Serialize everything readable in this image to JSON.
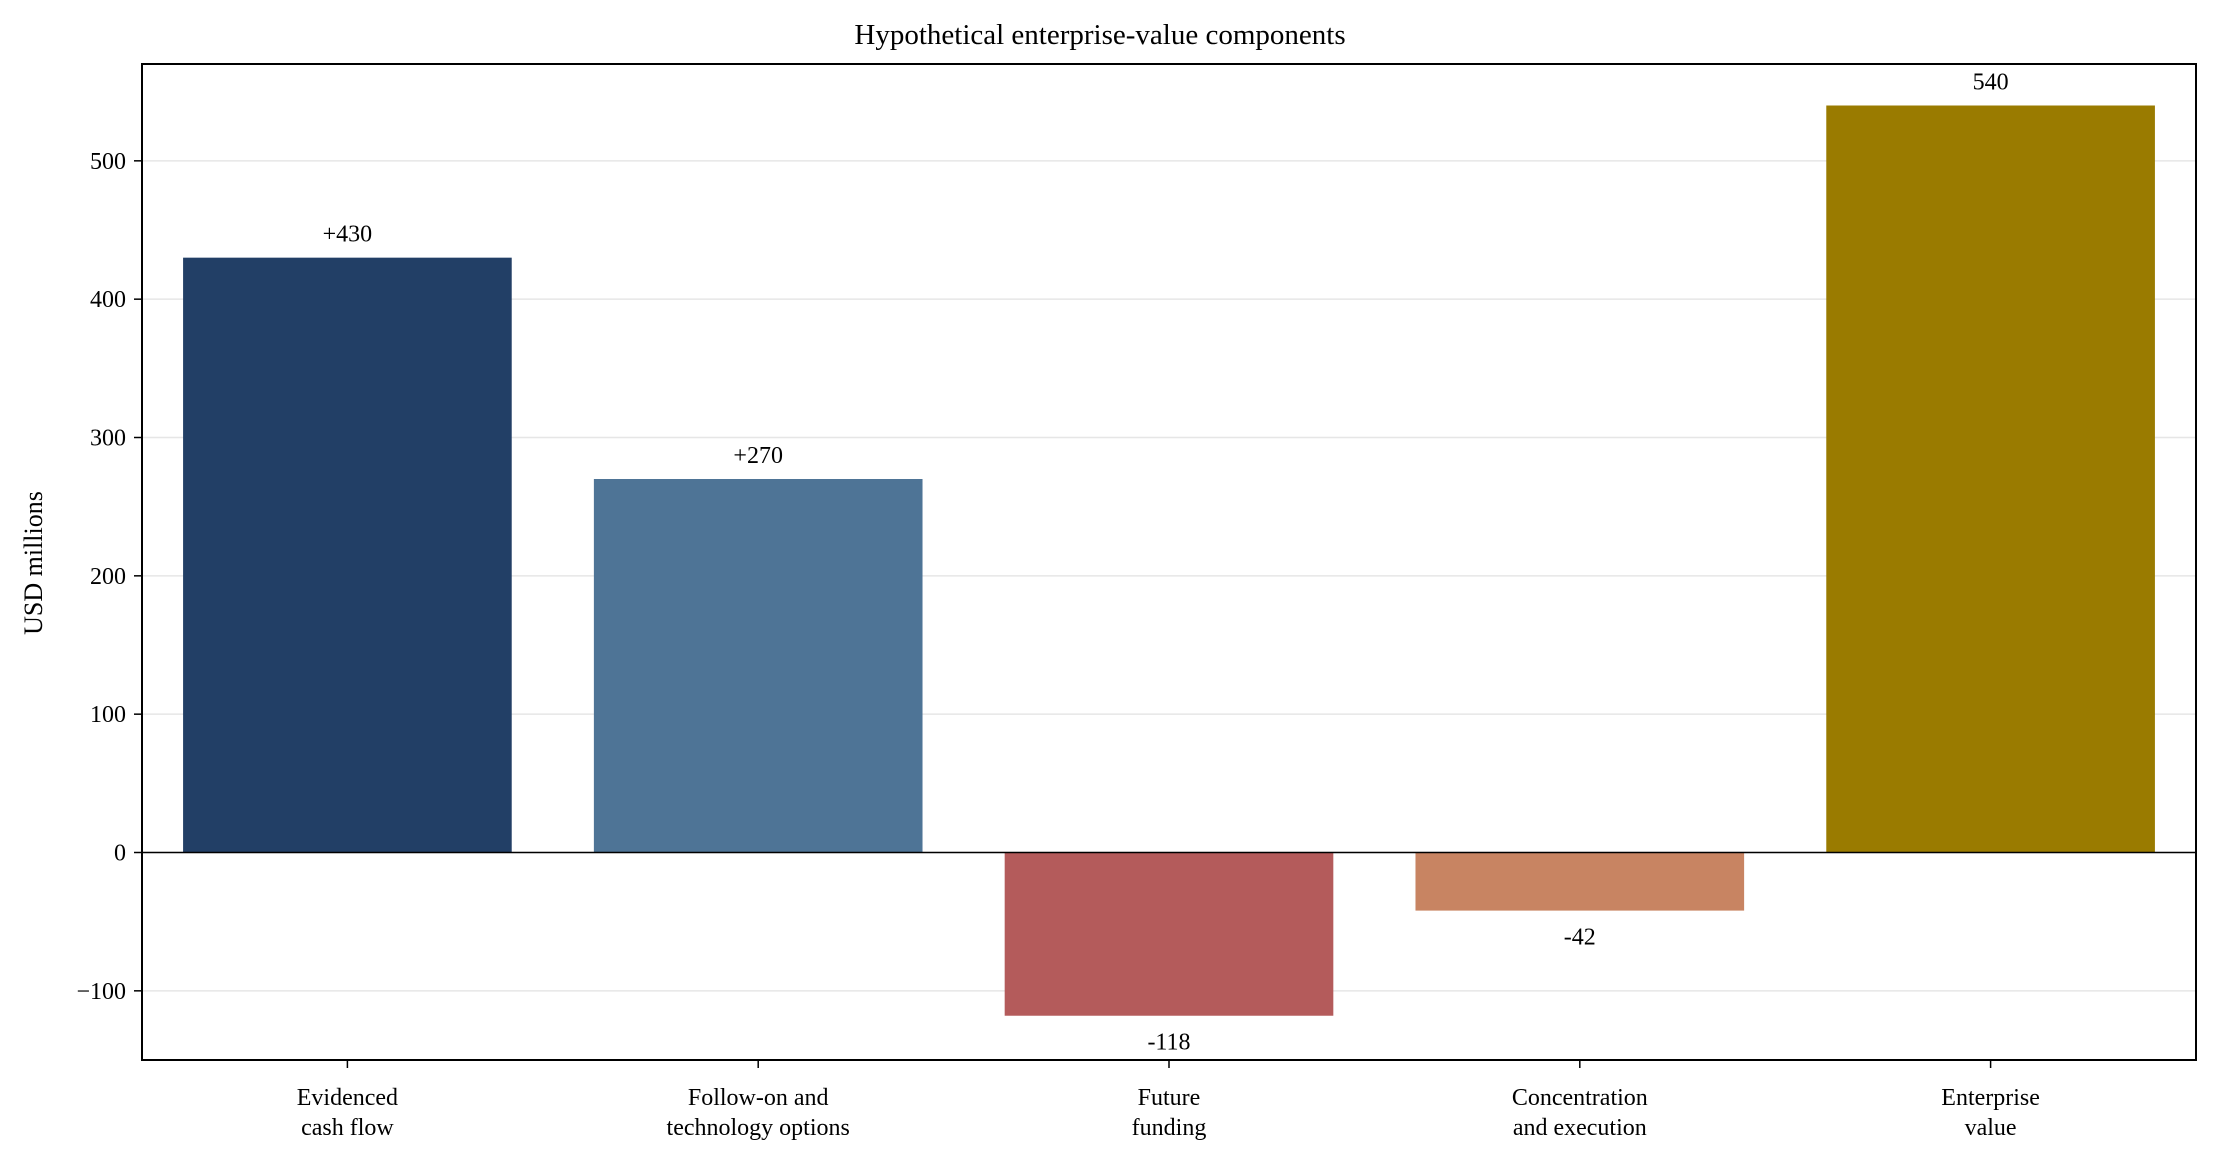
{
  "chart_data": {
    "type": "bar",
    "title": "Hypothetical enterprise-value components",
    "ylabel": "USD millions",
    "xlabel": "",
    "ylim": [
      -150,
      570
    ],
    "yticks": [
      -100,
      0,
      100,
      200,
      300,
      400,
      500
    ],
    "ytick_labels": [
      "−100",
      "0",
      "100",
      "200",
      "300",
      "400",
      "500"
    ],
    "grid": true,
    "categories": [
      [
        "Evidenced",
        "cash flow"
      ],
      [
        "Follow-on and",
        "technology options"
      ],
      [
        "Future",
        "funding"
      ],
      [
        "Concentration",
        "and execution"
      ],
      [
        "Enterprise",
        "value"
      ]
    ],
    "values": [
      430,
      270,
      -118,
      -42,
      540
    ],
    "data_labels": [
      "+430",
      "+270",
      "-118",
      "-42",
      "540"
    ],
    "colors": [
      "#223f66",
      "#4e7496",
      "#b45b5b",
      "#c88462",
      "#9a7b00"
    ]
  }
}
